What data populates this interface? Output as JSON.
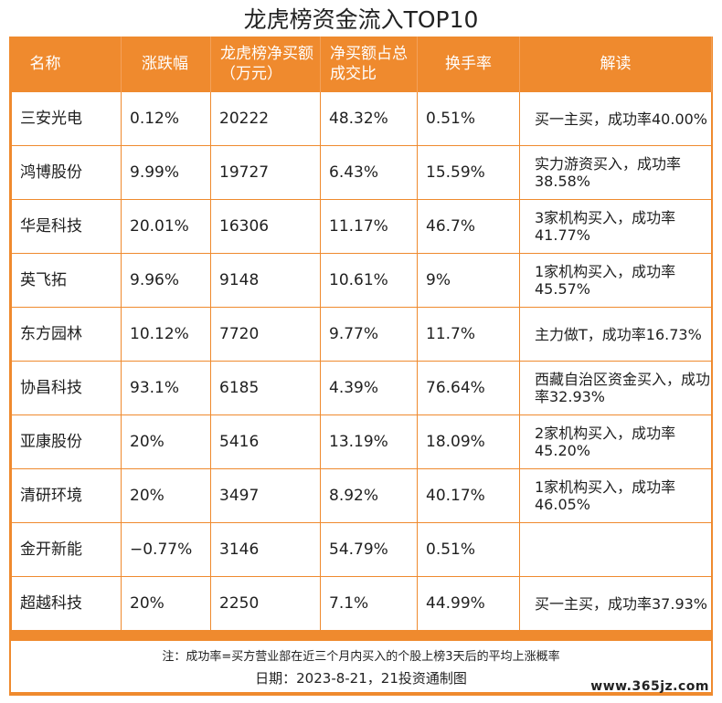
{
  "title": "龙虎榜资金流入TOP10",
  "headers": [
    "名称",
    "涨跌幅",
    "龙虎榜净买额（万元）",
    "净买额占总成交比",
    "换手率",
    "解读"
  ],
  "rows": [
    [
      "三安光电",
      "0.12%",
      "20222",
      "48.32%",
      "0.51%",
      "买一主买，成功率40.00%"
    ],
    [
      "鸿博股份",
      "9.99%",
      "19727",
      "6.43%",
      "15.59%",
      "实力游资买入，成功率38.58%"
    ],
    [
      "华是科技",
      "20.01%",
      "16306",
      "11.17%",
      "46.7%",
      "3家机构买入，成功率41.77%"
    ],
    [
      "英飞拓",
      "9.96%",
      "9148",
      "10.61%",
      "9%",
      "1家机构买入，成功率45.57%"
    ],
    [
      "东方园林",
      "10.12%",
      "7720",
      "9.77%",
      "11.7%",
      "主力做T，成功率16.73%"
    ],
    [
      "协昌科技",
      "93.1%",
      "6185",
      "4.39%",
      "76.64%",
      "西藏自治区资金买入，成功率32.93%"
    ],
    [
      "亚康股份",
      "20%",
      "5416",
      "13.19%",
      "18.09%",
      "2家机构买入，成功率45.20%"
    ],
    [
      "清研环境",
      "20%",
      "3497",
      "8.92%",
      "40.17%",
      "1家机构买入，成功率46.05%"
    ],
    [
      "金开新能",
      "−0.77%",
      "3146",
      "54.79%",
      "0.51%",
      ""
    ],
    [
      "超越科技",
      "20%",
      "2250",
      "7.1%",
      "44.99%",
      "买一主买，成功率37.93%"
    ]
  ],
  "footer": {
    "note": "注：成功率=买方营业部在近三个月内买入的个股上榜3天后的平均上涨概率",
    "date": "日期：2023-8-21，21投资通制图"
  },
  "watermark": "www.365jz.com",
  "colors": {
    "accent": "#ef8a2e"
  }
}
